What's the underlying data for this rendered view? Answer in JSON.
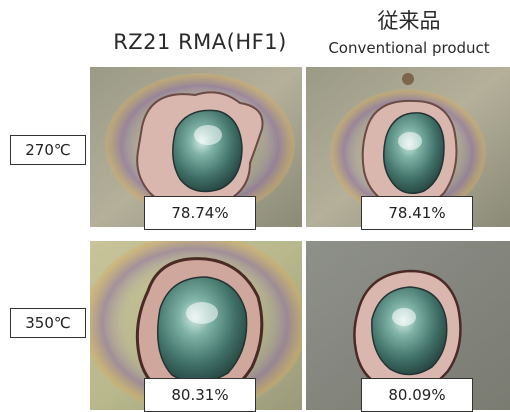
{
  "columns": {
    "left": "RZ21 RMA(HF1)",
    "right_jp": "従来品",
    "right_en": "Conventional product"
  },
  "rows": [
    {
      "label": "270℃",
      "left_value": "78.74%",
      "right_value": "78.41%"
    },
    {
      "label": "350℃",
      "left_value": "80.31%",
      "right_value": "80.09%"
    }
  ]
}
